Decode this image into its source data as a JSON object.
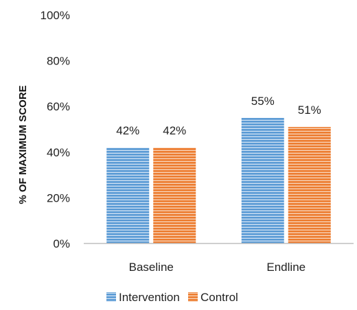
{
  "chart_data": {
    "type": "bar",
    "categories": [
      "Baseline",
      "Endline"
    ],
    "series": [
      {
        "name": "Intervention",
        "values": [
          42,
          55
        ],
        "labels": [
          "42%",
          "55%"
        ],
        "color": "#5b9bd5"
      },
      {
        "name": "Control",
        "values": [
          42,
          51
        ],
        "labels": [
          "42%",
          "51%"
        ],
        "color": "#ed7d31"
      }
    ],
    "ylabel": "% OF MAXIMUM SCORE",
    "ylim": [
      0,
      100
    ],
    "yticks": [
      0,
      20,
      40,
      60,
      80,
      100
    ],
    "ytick_labels": [
      "0%",
      "20%",
      "40%",
      "60%",
      "80%",
      "100%"
    ],
    "grid": false,
    "legend": "bottom-center",
    "bar_fill": "horizontal-stripes"
  }
}
